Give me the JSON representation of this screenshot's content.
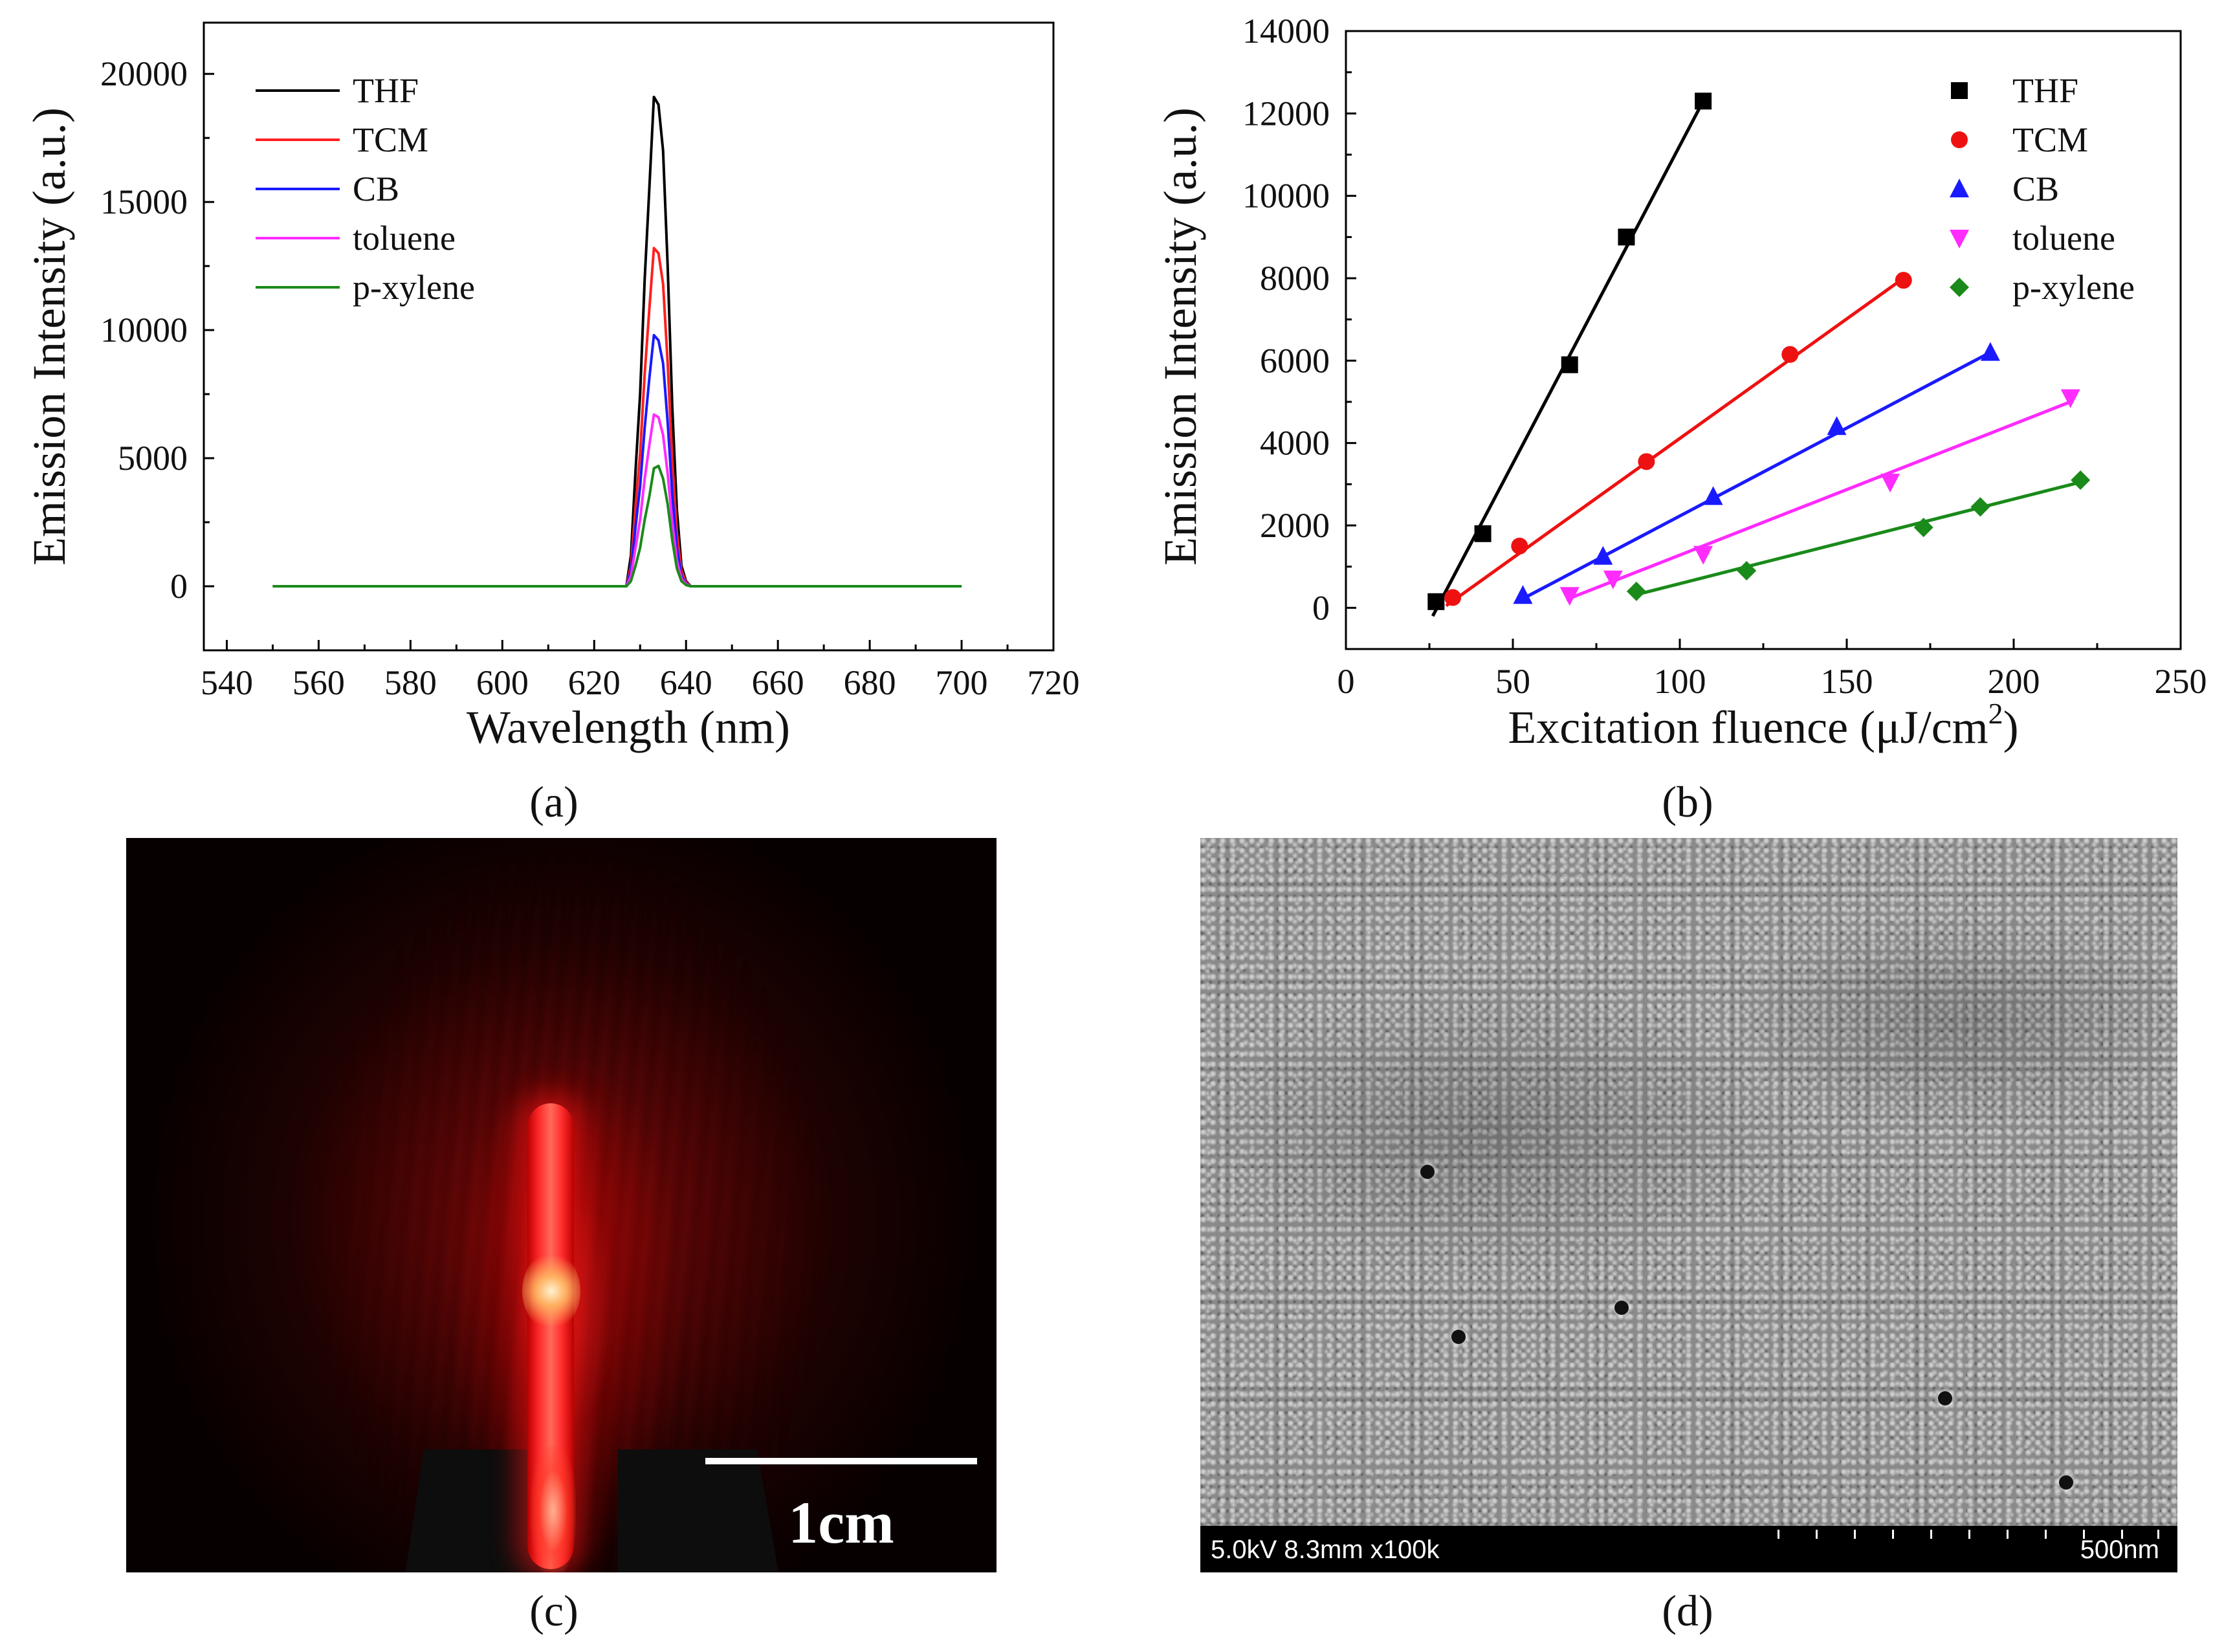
{
  "chart_data": [
    {
      "panel": "(a)",
      "type": "line",
      "xlabel": "Wavelength (nm)",
      "ylabel": "Emission Intensity (a.u.)",
      "xlim": [
        535,
        720
      ],
      "ylim": [
        -2500,
        22000
      ],
      "xticks": [
        540,
        560,
        580,
        600,
        620,
        640,
        660,
        680,
        700,
        720
      ],
      "yticks": [
        0,
        5000,
        10000,
        15000,
        20000
      ],
      "legend_position": "top-left",
      "series": [
        {
          "name": "THF",
          "color": "#000000",
          "x": [
            550,
            627,
            628,
            629,
            630,
            631,
            632,
            633,
            634,
            635,
            636,
            637,
            638,
            639,
            640,
            641,
            642,
            700
          ],
          "y": [
            0,
            0,
            1200,
            4500,
            7500,
            12000,
            15500,
            19100,
            18800,
            17000,
            12500,
            7000,
            3000,
            800,
            200,
            0,
            0,
            0
          ]
        },
        {
          "name": "TCM",
          "color": "#ff2020",
          "x": [
            550,
            627,
            628,
            629,
            630,
            631,
            632,
            633,
            634,
            635,
            636,
            637,
            638,
            639,
            640,
            641,
            642,
            700
          ],
          "y": [
            0,
            0,
            800,
            3100,
            5200,
            8300,
            10800,
            13200,
            13000,
            11800,
            8700,
            4900,
            2100,
            600,
            150,
            0,
            0,
            0
          ]
        },
        {
          "name": "CB",
          "color": "#1a1aff",
          "x": [
            550,
            627,
            628,
            629,
            630,
            631,
            632,
            633,
            634,
            635,
            636,
            637,
            638,
            639,
            640,
            641,
            642,
            700
          ],
          "y": [
            0,
            0,
            600,
            2300,
            3900,
            6200,
            8100,
            9800,
            9600,
            8700,
            6400,
            3600,
            1500,
            400,
            100,
            0,
            0,
            0
          ]
        },
        {
          "name": "toluene",
          "color": "#ff2bff",
          "x": [
            550,
            627,
            628,
            629,
            630,
            631,
            632,
            633,
            634,
            635,
            636,
            637,
            638,
            639,
            640,
            641,
            642,
            700
          ],
          "y": [
            0,
            0,
            400,
            1500,
            2600,
            4200,
            5500,
            6700,
            6600,
            5900,
            4400,
            2500,
            1000,
            300,
            80,
            0,
            0,
            0
          ]
        },
        {
          "name": "p-xylene",
          "color": "#1a8a1a",
          "x": [
            550,
            627,
            628,
            629,
            630,
            631,
            632,
            633,
            634,
            635,
            636,
            637,
            638,
            639,
            640,
            641,
            642,
            700
          ],
          "y": [
            0,
            0,
            200,
            800,
            1500,
            2600,
            3500,
            4600,
            4700,
            4200,
            3200,
            1800,
            700,
            200,
            50,
            0,
            0,
            0
          ]
        }
      ]
    },
    {
      "panel": "(b)",
      "type": "scatter",
      "xlabel_main": "Excitation fluence (",
      "xlabel_unit": "μJ/cm",
      "xlabel_sup": "2",
      "xlabel_close": ")",
      "ylabel": "Emission Intensity (a.u.)",
      "xlim": [
        0,
        250
      ],
      "ylim": [
        -1000,
        14000
      ],
      "xticks": [
        0,
        50,
        100,
        150,
        200,
        250
      ],
      "yticks": [
        0,
        2000,
        4000,
        6000,
        8000,
        10000,
        12000,
        14000
      ],
      "legend_position": "top-right",
      "series": [
        {
          "name": "THF",
          "color": "#000000",
          "marker": "square",
          "x": [
            27,
            41,
            67,
            84,
            107
          ],
          "y": [
            150,
            1800,
            5900,
            9000,
            12300
          ],
          "fit": [
            [
              26,
              -200
            ],
            [
              107,
              12300
            ]
          ]
        },
        {
          "name": "TCM",
          "color": "#ee1111",
          "marker": "circle",
          "x": [
            32,
            52,
            90,
            133,
            167
          ],
          "y": [
            250,
            1500,
            3550,
            6150,
            7950
          ],
          "fit": [
            [
              30,
              50
            ],
            [
              167,
              8000
            ]
          ]
        },
        {
          "name": "CB",
          "color": "#1a1aff",
          "marker": "triangle-up",
          "x": [
            53,
            77,
            110,
            147,
            193
          ],
          "y": [
            300,
            1250,
            2700,
            4400,
            6200
          ],
          "fit": [
            [
              52,
              180
            ],
            [
              193,
              6200
            ]
          ]
        },
        {
          "name": "toluene",
          "color": "#ff2bff",
          "marker": "triangle-down",
          "x": [
            67,
            80,
            107,
            163,
            217
          ],
          "y": [
            300,
            700,
            1300,
            3050,
            5100
          ],
          "fit": [
            [
              66,
              200
            ],
            [
              217,
              5000
            ]
          ]
        },
        {
          "name": "p-xylene",
          "color": "#1a8a1a",
          "marker": "diamond",
          "x": [
            87,
            120,
            173,
            190,
            220
          ],
          "y": [
            400,
            900,
            1950,
            2450,
            3100
          ],
          "fit": [
            [
              86,
              300
            ],
            [
              220,
              3050
            ]
          ]
        }
      ]
    }
  ],
  "captions": {
    "a": "(a)",
    "b": "(b)",
    "c": "(c)",
    "d": "(d)"
  },
  "photo_c": {
    "scale_label": "1cm"
  },
  "photo_d": {
    "info": "5.0kV 8.3mm x100k",
    "scale": "500nm"
  }
}
